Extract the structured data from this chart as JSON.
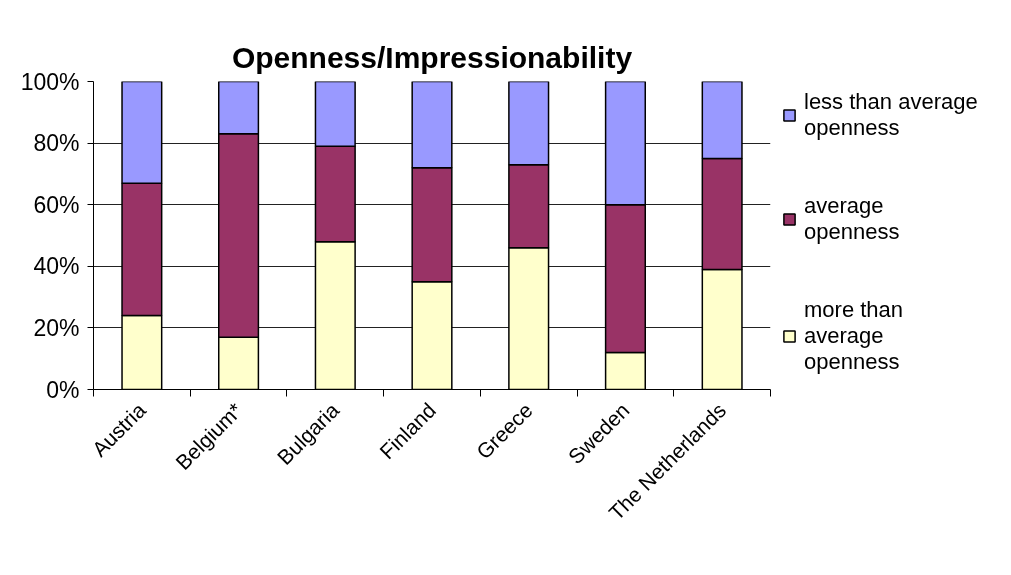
{
  "chart_data": {
    "type": "bar",
    "title": "Openness/Impressionability",
    "categories": [
      "Austria",
      "Belgium*",
      "Bulgaria",
      "Finland",
      "Greece",
      "Sweden",
      "The Netherlands"
    ],
    "stacked": true,
    "series": [
      {
        "name": "more than average openness",
        "color": "#ffffcc",
        "values": [
          24,
          17,
          48,
          35,
          46,
          12,
          39
        ]
      },
      {
        "name": "average openness",
        "color": "#993366",
        "values": [
          43,
          66,
          31,
          37,
          27,
          48,
          36
        ]
      },
      {
        "name": "less than average openness",
        "color": "#9999ff",
        "values": [
          33,
          17,
          21,
          28,
          27,
          40,
          25
        ]
      }
    ],
    "ylim": [
      0,
      100
    ],
    "yticks": [
      {
        "value": 0,
        "label": "0%"
      },
      {
        "value": 20,
        "label": "20%"
      },
      {
        "value": 40,
        "label": "40%"
      },
      {
        "value": 60,
        "label": "60%"
      },
      {
        "value": 80,
        "label": "80%"
      },
      {
        "value": 100,
        "label": "100%"
      }
    ],
    "grid": "y",
    "legend": "right"
  }
}
